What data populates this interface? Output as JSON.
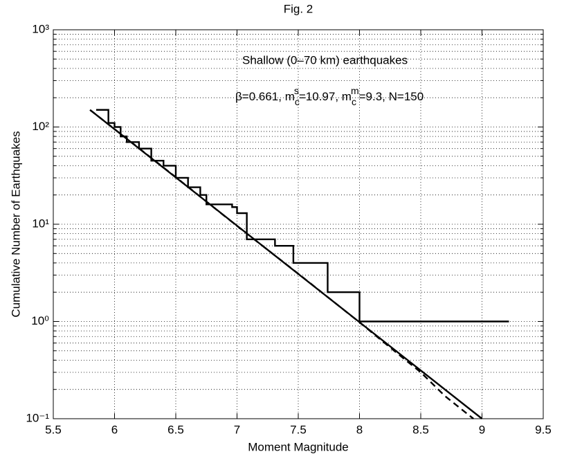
{
  "chart_data": {
    "type": "line",
    "title": "Fig. 2",
    "xlabel": "Moment Magnitude",
    "ylabel": "Cumulative Number of Earthquakes",
    "annotations": [
      "Shallow (0–70 km) earthquakes"
    ],
    "parameter_text": [
      "β=0.661, m",
      "c",
      "s",
      "=10.97, m",
      "c",
      "m",
      "=9.3, N=150"
    ],
    "xlim": [
      5.5,
      9.5
    ],
    "xticks": [
      5.5,
      6,
      6.5,
      7,
      7.5,
      8,
      8.5,
      9,
      9.5
    ],
    "ylim": [
      0.1,
      1000
    ],
    "ylog": true,
    "yticks": [
      {
        "value": 0.1,
        "label": "10⁻¹"
      },
      {
        "value": 1,
        "label": "10⁰"
      },
      {
        "value": 10,
        "label": "10¹"
      },
      {
        "value": 100,
        "label": "10²"
      },
      {
        "value": 1000,
        "label": "10³"
      }
    ],
    "y_minor_ticks": [
      0.2,
      0.3,
      0.4,
      0.5,
      0.6,
      0.7,
      0.8,
      0.9,
      2,
      3,
      4,
      5,
      6,
      7,
      8,
      9,
      20,
      30,
      40,
      50,
      60,
      70,
      80,
      90,
      200,
      300,
      400,
      500,
      600,
      700,
      800,
      900
    ],
    "grid": true,
    "series": [
      {
        "style": "step",
        "color": "#000000",
        "x": [
          5.85,
          5.95,
          6.0,
          6.05,
          6.1,
          6.2,
          6.3,
          6.4,
          6.5,
          6.6,
          6.7,
          6.75,
          6.96,
          7.0,
          7.08,
          7.31,
          7.46,
          7.74,
          8.0,
          9.22
        ],
        "values": [
          150,
          110,
          100,
          80,
          70,
          60,
          45,
          40,
          30,
          24,
          20,
          16,
          15,
          13,
          7,
          6,
          4,
          2,
          1,
          1
        ]
      },
      {
        "style": "solid",
        "color": "#000000",
        "x": [
          5.8,
          9.0
        ],
        "values": [
          150,
          0.1
        ]
      },
      {
        "style": "dashed",
        "color": "#000000",
        "x": [
          5.8,
          6.5,
          7.0,
          7.5,
          8.0,
          8.3,
          8.5,
          8.7,
          8.93
        ],
        "values": [
          150,
          30.5,
          9.6,
          3.1,
          0.98,
          0.48,
          0.3,
          0.17,
          0.1
        ]
      }
    ]
  }
}
